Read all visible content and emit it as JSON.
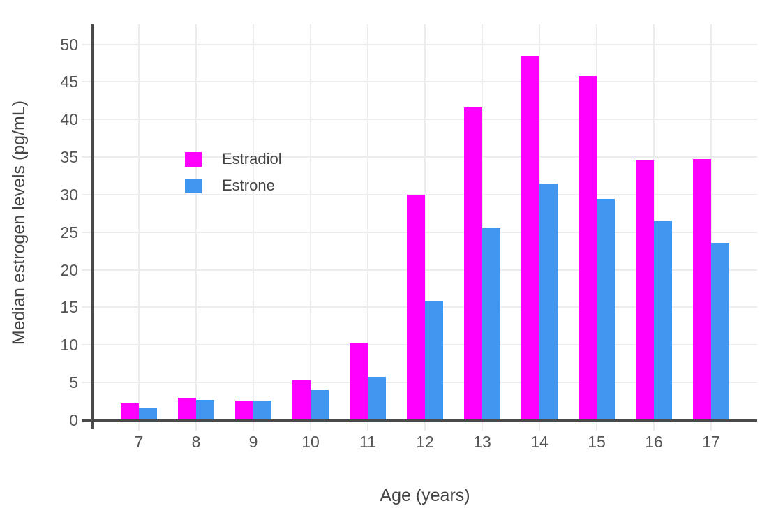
{
  "chart_data": {
    "type": "bar",
    "title": "",
    "xlabel": "Age (years)",
    "ylabel": "Median estrogen levels (pg/mL)",
    "categories": [
      "7",
      "8",
      "9",
      "10",
      "11",
      "12",
      "13",
      "14",
      "15",
      "16",
      "17"
    ],
    "series": [
      {
        "name": "Estradiol",
        "color": "#FF00FF",
        "values": [
          2.2,
          3.0,
          2.6,
          5.3,
          10.2,
          30.0,
          41.6,
          48.5,
          45.8,
          34.6,
          34.7
        ]
      },
      {
        "name": "Estrone",
        "color": "#4196F0",
        "values": [
          1.7,
          2.7,
          2.6,
          4.0,
          5.8,
          15.8,
          25.5,
          31.5,
          29.4,
          26.6,
          23.6
        ]
      }
    ],
    "yticks": [
      0,
      5,
      10,
      15,
      20,
      25,
      30,
      35,
      40,
      45,
      50
    ],
    "ylim": [
      0,
      52.65
    ],
    "grid": true,
    "legend_position": "upper-left-inside",
    "colors": {
      "axis_line": "#4a4a4a",
      "gridline": "#ececec",
      "tick_label": "#555555",
      "axis_title": "#444444",
      "background": "#ffffff"
    }
  }
}
